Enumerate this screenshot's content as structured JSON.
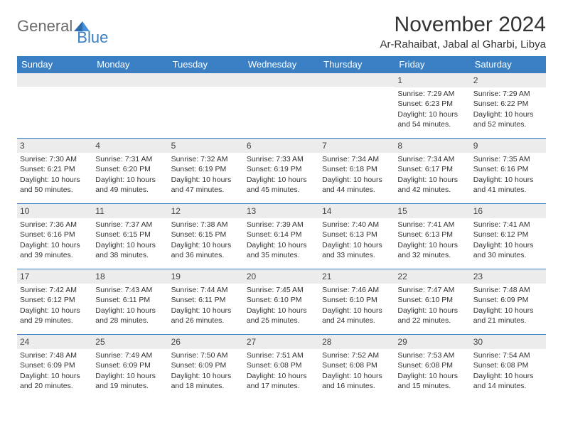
{
  "logo": {
    "text1": "General",
    "text2": "Blue"
  },
  "title": "November 2024",
  "location": "Ar-Rahaibat, Jabal al Gharbi, Libya",
  "colors": {
    "header_bg": "#3a7fc4",
    "header_text": "#ffffff",
    "daynum_bg": "#ececec",
    "border": "#3a7fc4",
    "text": "#333333",
    "logo_gray": "#6b6b6b",
    "logo_blue": "#3a7fc4",
    "page_bg": "#ffffff"
  },
  "weekdays": [
    "Sunday",
    "Monday",
    "Tuesday",
    "Wednesday",
    "Thursday",
    "Friday",
    "Saturday"
  ],
  "weeks": [
    [
      null,
      null,
      null,
      null,
      null,
      {
        "n": "1",
        "sunrise": "7:29 AM",
        "sunset": "6:23 PM",
        "dl1": "Daylight: 10 hours",
        "dl2": "and 54 minutes."
      },
      {
        "n": "2",
        "sunrise": "7:29 AM",
        "sunset": "6:22 PM",
        "dl1": "Daylight: 10 hours",
        "dl2": "and 52 minutes."
      }
    ],
    [
      {
        "n": "3",
        "sunrise": "7:30 AM",
        "sunset": "6:21 PM",
        "dl1": "Daylight: 10 hours",
        "dl2": "and 50 minutes."
      },
      {
        "n": "4",
        "sunrise": "7:31 AM",
        "sunset": "6:20 PM",
        "dl1": "Daylight: 10 hours",
        "dl2": "and 49 minutes."
      },
      {
        "n": "5",
        "sunrise": "7:32 AM",
        "sunset": "6:19 PM",
        "dl1": "Daylight: 10 hours",
        "dl2": "and 47 minutes."
      },
      {
        "n": "6",
        "sunrise": "7:33 AM",
        "sunset": "6:19 PM",
        "dl1": "Daylight: 10 hours",
        "dl2": "and 45 minutes."
      },
      {
        "n": "7",
        "sunrise": "7:34 AM",
        "sunset": "6:18 PM",
        "dl1": "Daylight: 10 hours",
        "dl2": "and 44 minutes."
      },
      {
        "n": "8",
        "sunrise": "7:34 AM",
        "sunset": "6:17 PM",
        "dl1": "Daylight: 10 hours",
        "dl2": "and 42 minutes."
      },
      {
        "n": "9",
        "sunrise": "7:35 AM",
        "sunset": "6:16 PM",
        "dl1": "Daylight: 10 hours",
        "dl2": "and 41 minutes."
      }
    ],
    [
      {
        "n": "10",
        "sunrise": "7:36 AM",
        "sunset": "6:16 PM",
        "dl1": "Daylight: 10 hours",
        "dl2": "and 39 minutes."
      },
      {
        "n": "11",
        "sunrise": "7:37 AM",
        "sunset": "6:15 PM",
        "dl1": "Daylight: 10 hours",
        "dl2": "and 38 minutes."
      },
      {
        "n": "12",
        "sunrise": "7:38 AM",
        "sunset": "6:15 PM",
        "dl1": "Daylight: 10 hours",
        "dl2": "and 36 minutes."
      },
      {
        "n": "13",
        "sunrise": "7:39 AM",
        "sunset": "6:14 PM",
        "dl1": "Daylight: 10 hours",
        "dl2": "and 35 minutes."
      },
      {
        "n": "14",
        "sunrise": "7:40 AM",
        "sunset": "6:13 PM",
        "dl1": "Daylight: 10 hours",
        "dl2": "and 33 minutes."
      },
      {
        "n": "15",
        "sunrise": "7:41 AM",
        "sunset": "6:13 PM",
        "dl1": "Daylight: 10 hours",
        "dl2": "and 32 minutes."
      },
      {
        "n": "16",
        "sunrise": "7:41 AM",
        "sunset": "6:12 PM",
        "dl1": "Daylight: 10 hours",
        "dl2": "and 30 minutes."
      }
    ],
    [
      {
        "n": "17",
        "sunrise": "7:42 AM",
        "sunset": "6:12 PM",
        "dl1": "Daylight: 10 hours",
        "dl2": "and 29 minutes."
      },
      {
        "n": "18",
        "sunrise": "7:43 AM",
        "sunset": "6:11 PM",
        "dl1": "Daylight: 10 hours",
        "dl2": "and 28 minutes."
      },
      {
        "n": "19",
        "sunrise": "7:44 AM",
        "sunset": "6:11 PM",
        "dl1": "Daylight: 10 hours",
        "dl2": "and 26 minutes."
      },
      {
        "n": "20",
        "sunrise": "7:45 AM",
        "sunset": "6:10 PM",
        "dl1": "Daylight: 10 hours",
        "dl2": "and 25 minutes."
      },
      {
        "n": "21",
        "sunrise": "7:46 AM",
        "sunset": "6:10 PM",
        "dl1": "Daylight: 10 hours",
        "dl2": "and 24 minutes."
      },
      {
        "n": "22",
        "sunrise": "7:47 AM",
        "sunset": "6:10 PM",
        "dl1": "Daylight: 10 hours",
        "dl2": "and 22 minutes."
      },
      {
        "n": "23",
        "sunrise": "7:48 AM",
        "sunset": "6:09 PM",
        "dl1": "Daylight: 10 hours",
        "dl2": "and 21 minutes."
      }
    ],
    [
      {
        "n": "24",
        "sunrise": "7:48 AM",
        "sunset": "6:09 PM",
        "dl1": "Daylight: 10 hours",
        "dl2": "and 20 minutes."
      },
      {
        "n": "25",
        "sunrise": "7:49 AM",
        "sunset": "6:09 PM",
        "dl1": "Daylight: 10 hours",
        "dl2": "and 19 minutes."
      },
      {
        "n": "26",
        "sunrise": "7:50 AM",
        "sunset": "6:09 PM",
        "dl1": "Daylight: 10 hours",
        "dl2": "and 18 minutes."
      },
      {
        "n": "27",
        "sunrise": "7:51 AM",
        "sunset": "6:08 PM",
        "dl1": "Daylight: 10 hours",
        "dl2": "and 17 minutes."
      },
      {
        "n": "28",
        "sunrise": "7:52 AM",
        "sunset": "6:08 PM",
        "dl1": "Daylight: 10 hours",
        "dl2": "and 16 minutes."
      },
      {
        "n": "29",
        "sunrise": "7:53 AM",
        "sunset": "6:08 PM",
        "dl1": "Daylight: 10 hours",
        "dl2": "and 15 minutes."
      },
      {
        "n": "30",
        "sunrise": "7:54 AM",
        "sunset": "6:08 PM",
        "dl1": "Daylight: 10 hours",
        "dl2": "and 14 minutes."
      }
    ]
  ]
}
